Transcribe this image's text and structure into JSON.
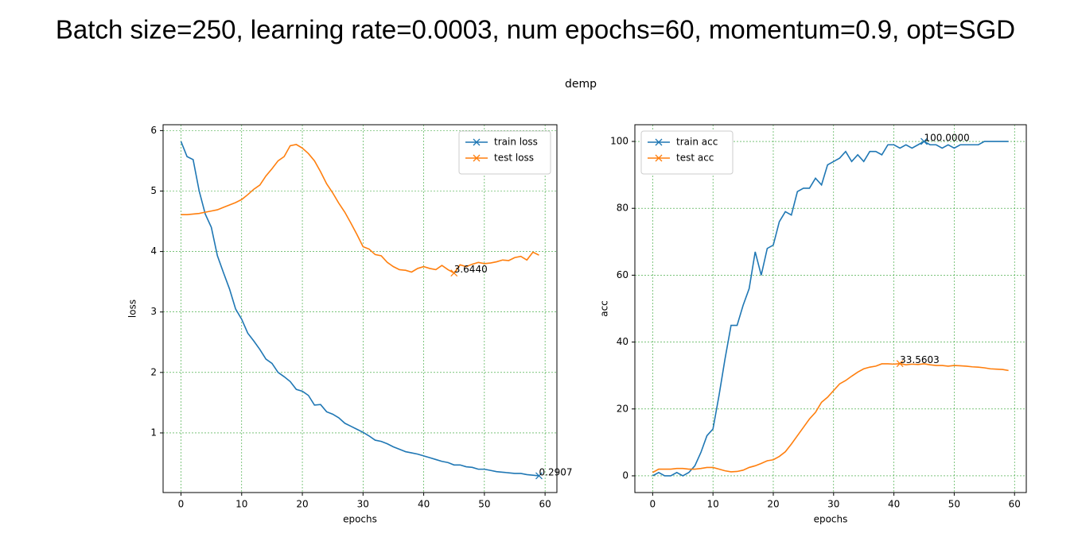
{
  "slide_title": "Batch size=250, learning rate=0.0003, num epochs=60, momentum=0.9, opt=SGD",
  "figure_title": "demp",
  "chart_data": [
    {
      "type": "line",
      "xlabel": "epochs",
      "ylabel": "loss",
      "xlim": [
        -2.95,
        61.95
      ],
      "ylim": [
        0.014,
        6.097
      ],
      "xticks": [
        0,
        10,
        20,
        30,
        40,
        50,
        60
      ],
      "yticks": [
        1,
        2,
        3,
        4,
        5,
        6
      ],
      "grid": true,
      "legend": "upper right",
      "x": [
        0,
        1,
        2,
        3,
        4,
        5,
        6,
        7,
        8,
        9,
        10,
        11,
        12,
        13,
        14,
        15,
        16,
        17,
        18,
        19,
        20,
        21,
        22,
        23,
        24,
        25,
        26,
        27,
        28,
        29,
        30,
        31,
        32,
        33,
        34,
        35,
        36,
        37,
        38,
        39,
        40,
        41,
        42,
        43,
        44,
        45,
        46,
        47,
        48,
        49,
        50,
        51,
        52,
        53,
        54,
        55,
        56,
        57,
        58,
        59
      ],
      "series": [
        {
          "name": "train loss",
          "color": "#1f77b4",
          "values": [
            5.82,
            5.57,
            5.52,
            5.0,
            4.62,
            4.4,
            3.93,
            3.65,
            3.38,
            3.05,
            2.88,
            2.65,
            2.52,
            2.38,
            2.22,
            2.15,
            2.0,
            1.93,
            1.85,
            1.72,
            1.69,
            1.62,
            1.46,
            1.47,
            1.35,
            1.31,
            1.25,
            1.16,
            1.11,
            1.06,
            1.01,
            0.95,
            0.88,
            0.86,
            0.82,
            0.77,
            0.73,
            0.69,
            0.67,
            0.65,
            0.62,
            0.59,
            0.56,
            0.53,
            0.51,
            0.47,
            0.47,
            0.44,
            0.43,
            0.4,
            0.4,
            0.38,
            0.36,
            0.35,
            0.34,
            0.33,
            0.33,
            0.31,
            0.3,
            0.2907
          ],
          "value_labels": [
            null,
            null,
            null,
            null,
            null,
            null,
            null,
            null,
            null,
            null,
            null,
            null,
            null,
            null,
            null,
            null,
            null,
            null,
            null,
            null,
            null,
            null,
            null,
            null,
            null,
            null,
            null,
            null,
            null,
            null,
            null,
            null,
            null,
            null,
            null,
            null,
            null,
            null,
            null,
            null,
            null,
            null,
            null,
            null,
            null,
            null,
            null,
            null,
            null,
            null,
            null,
            null,
            null,
            null,
            null,
            null,
            null,
            null,
            null,
            "0.2907"
          ]
        },
        {
          "name": "test loss",
          "color": "#ff7f0e",
          "values": [
            4.61,
            4.61,
            4.62,
            4.63,
            4.65,
            4.67,
            4.69,
            4.73,
            4.77,
            4.81,
            4.86,
            4.94,
            5.03,
            5.1,
            5.25,
            5.37,
            5.5,
            5.57,
            5.75,
            5.77,
            5.71,
            5.62,
            5.5,
            5.32,
            5.12,
            4.97,
            4.8,
            4.65,
            4.47,
            4.28,
            4.08,
            4.04,
            3.95,
            3.93,
            3.82,
            3.75,
            3.7,
            3.69,
            3.66,
            3.72,
            3.75,
            3.72,
            3.7,
            3.77,
            3.7,
            3.644,
            3.78,
            3.75,
            3.79,
            3.82,
            3.8,
            3.81,
            3.83,
            3.86,
            3.85,
            3.9,
            3.92,
            3.86,
            3.99,
            3.94
          ],
          "value_labels": [
            null,
            null,
            null,
            null,
            null,
            null,
            null,
            null,
            null,
            null,
            null,
            null,
            null,
            null,
            null,
            null,
            null,
            null,
            null,
            null,
            null,
            null,
            null,
            null,
            null,
            null,
            null,
            null,
            null,
            null,
            null,
            null,
            null,
            null,
            null,
            null,
            null,
            null,
            null,
            null,
            null,
            null,
            null,
            null,
            null,
            "3.6440",
            null,
            null,
            null,
            null,
            null,
            null,
            null,
            null,
            null,
            null,
            null,
            null,
            null,
            null
          ]
        }
      ]
    },
    {
      "type": "line",
      "xlabel": "epochs",
      "ylabel": "acc",
      "xlim": [
        -2.95,
        61.95
      ],
      "ylim": [
        -5,
        105
      ],
      "xticks": [
        0,
        10,
        20,
        30,
        40,
        50,
        60
      ],
      "yticks": [
        0,
        20,
        40,
        60,
        80,
        100
      ],
      "grid": true,
      "legend": "upper left",
      "x": [
        0,
        1,
        2,
        3,
        4,
        5,
        6,
        7,
        8,
        9,
        10,
        11,
        12,
        13,
        14,
        15,
        16,
        17,
        18,
        19,
        20,
        21,
        22,
        23,
        24,
        25,
        26,
        27,
        28,
        29,
        30,
        31,
        32,
        33,
        34,
        35,
        36,
        37,
        38,
        39,
        40,
        41,
        42,
        43,
        44,
        45,
        46,
        47,
        48,
        49,
        50,
        51,
        52,
        53,
        54,
        55,
        56,
        57,
        58,
        59
      ],
      "series": [
        {
          "name": "train acc",
          "color": "#1f77b4",
          "values": [
            0,
            1,
            0,
            0,
            1,
            0,
            1,
            3,
            7,
            12,
            14,
            24,
            35,
            45,
            45,
            51,
            56,
            67,
            60,
            68,
            69,
            76,
            79,
            78,
            85,
            86,
            86,
            89,
            87,
            93,
            94,
            95,
            97,
            94,
            96,
            94,
            97,
            97,
            96,
            99,
            99,
            98,
            99,
            98,
            99,
            100,
            99,
            99,
            98,
            99,
            98,
            99,
            99,
            99,
            99,
            100,
            100,
            100,
            100,
            100
          ],
          "value_labels": [
            null,
            null,
            null,
            null,
            null,
            null,
            null,
            null,
            null,
            null,
            null,
            null,
            null,
            null,
            null,
            null,
            null,
            null,
            null,
            null,
            null,
            null,
            null,
            null,
            null,
            null,
            null,
            null,
            null,
            null,
            null,
            null,
            null,
            null,
            null,
            null,
            null,
            null,
            null,
            null,
            null,
            null,
            null,
            null,
            null,
            "100.0000",
            null,
            null,
            null,
            null,
            null,
            null,
            null,
            null,
            null,
            null,
            null,
            null,
            null,
            null
          ]
        },
        {
          "name": "test acc",
          "color": "#ff7f0e",
          "values": [
            1,
            2,
            2,
            2,
            2.2,
            2.2,
            2,
            2,
            2.2,
            2.5,
            2.5,
            2,
            1.5,
            1.2,
            1.3,
            1.7,
            2.5,
            3,
            3.7,
            4.5,
            4.8,
            5.8,
            7.2,
            9.5,
            12,
            14.5,
            17,
            19,
            22,
            23.5,
            25.5,
            27.5,
            28.5,
            29.8,
            31,
            32,
            32.5,
            32.8,
            33.5,
            33.5,
            33.4,
            33.5603,
            33.2,
            33.4,
            33.3,
            33.5,
            33.2,
            33,
            33,
            32.8,
            33,
            32.9,
            32.8,
            32.6,
            32.5,
            32.3,
            32,
            31.9,
            31.8,
            31.5
          ],
          "value_labels": [
            null,
            null,
            null,
            null,
            null,
            null,
            null,
            null,
            null,
            null,
            null,
            null,
            null,
            null,
            null,
            null,
            null,
            null,
            null,
            null,
            null,
            null,
            null,
            null,
            null,
            null,
            null,
            null,
            null,
            null,
            null,
            null,
            null,
            null,
            null,
            null,
            null,
            null,
            null,
            null,
            null,
            "33.5603",
            null,
            null,
            null,
            null,
            null,
            null,
            null,
            null,
            null,
            null,
            null,
            null,
            null,
            null,
            null,
            null,
            null,
            null
          ]
        }
      ]
    }
  ]
}
